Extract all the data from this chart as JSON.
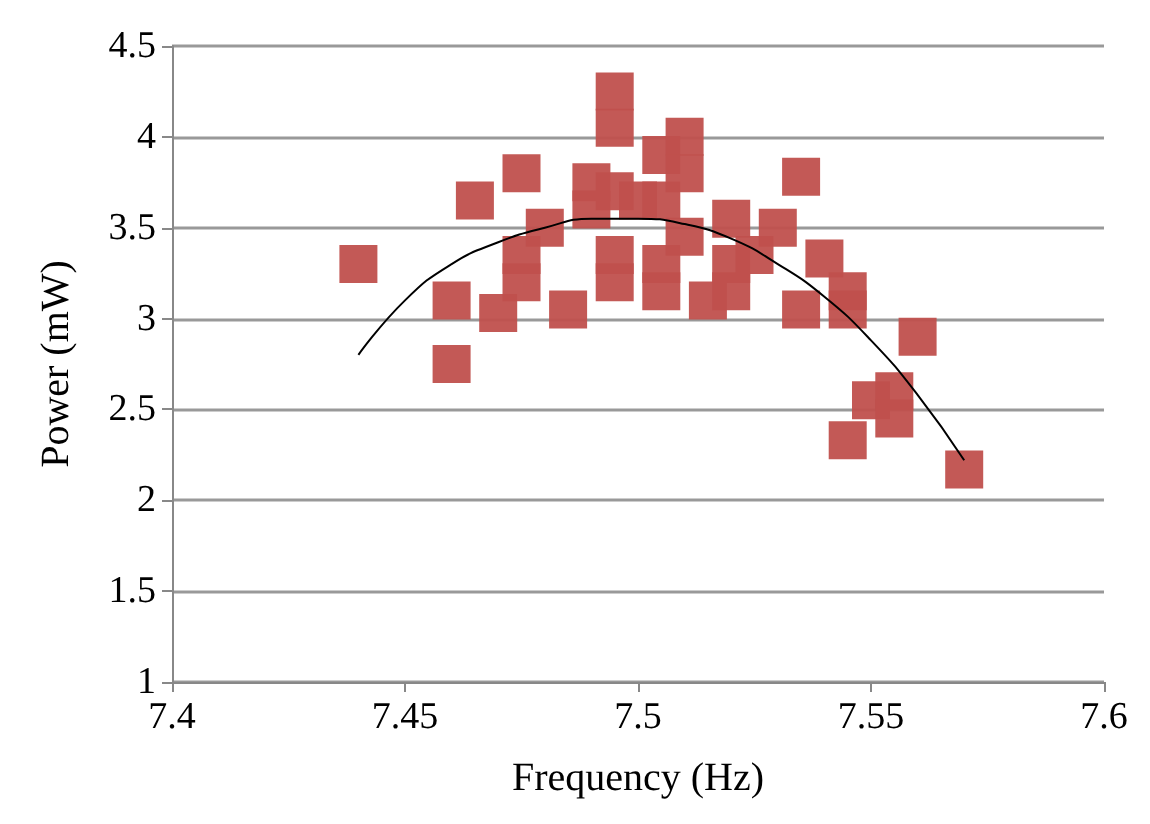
{
  "chart_data": {
    "type": "scatter",
    "xlabel": "Frequency (Hz)",
    "ylabel": "Power (mW)",
    "xlim": [
      7.4,
      7.6
    ],
    "xticks": [
      7.4,
      7.45,
      7.5,
      7.55,
      7.6
    ],
    "ylim": [
      1,
      4.5
    ],
    "yticks": [
      1,
      1.5,
      2,
      2.5,
      3,
      3.5,
      4,
      4.5
    ],
    "grid": "y",
    "series": [
      {
        "color": "#c0504d",
        "marker": "square",
        "x": [
          7.44,
          7.46,
          7.46,
          7.465,
          7.47,
          7.475,
          7.475,
          7.475,
          7.48,
          7.485,
          7.49,
          7.49,
          7.495,
          7.495,
          7.495,
          7.495,
          7.495,
          7.5,
          7.505,
          7.505,
          7.505,
          7.505,
          7.51,
          7.51,
          7.51,
          7.515,
          7.52,
          7.52,
          7.52,
          7.525,
          7.53,
          7.535,
          7.535,
          7.54,
          7.545,
          7.545,
          7.545,
          7.55,
          7.555,
          7.555,
          7.56,
          7.57
        ],
        "values": [
          3.3,
          3.1,
          2.75,
          3.65,
          3.03,
          3.8,
          3.2,
          3.35,
          3.5,
          3.05,
          3.75,
          3.6,
          4.25,
          4.05,
          3.7,
          3.35,
          3.2,
          3.65,
          3.65,
          3.3,
          3.15,
          3.9,
          4.0,
          3.8,
          3.45,
          3.1,
          3.55,
          3.3,
          3.15,
          3.35,
          3.5,
          3.78,
          3.05,
          3.33,
          3.15,
          3.05,
          2.33,
          2.55,
          2.6,
          2.45,
          2.9,
          2.17
        ]
      },
      {
        "type": "line",
        "color": "#000000",
        "marker": "none",
        "line_style": "solid",
        "x": [
          7.44,
          7.45,
          7.46,
          7.47,
          7.48,
          7.49,
          7.5,
          7.51,
          7.52,
          7.53,
          7.54,
          7.55,
          7.56,
          7.57
        ],
        "values": [
          2.8,
          3.1,
          3.3,
          3.42,
          3.5,
          3.55,
          3.55,
          3.52,
          3.44,
          3.3,
          3.12,
          2.88,
          2.58,
          2.22
        ]
      }
    ]
  }
}
